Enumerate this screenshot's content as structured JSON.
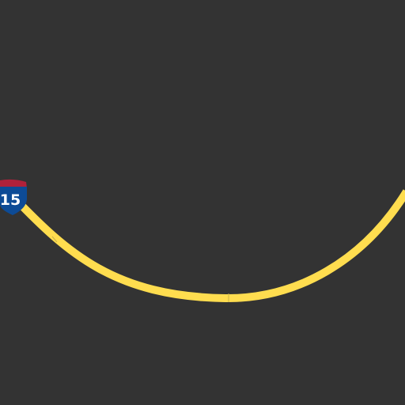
{
  "map": {
    "background_color": "#333333",
    "road": {
      "type": "interstate",
      "color": "#FFDD4F"
    },
    "shield": {
      "icon": "interstate-shield-icon",
      "label": "15",
      "top_color": "#B0213A",
      "body_color": "#0D4B96",
      "text_color": "#FFFFFF"
    }
  }
}
